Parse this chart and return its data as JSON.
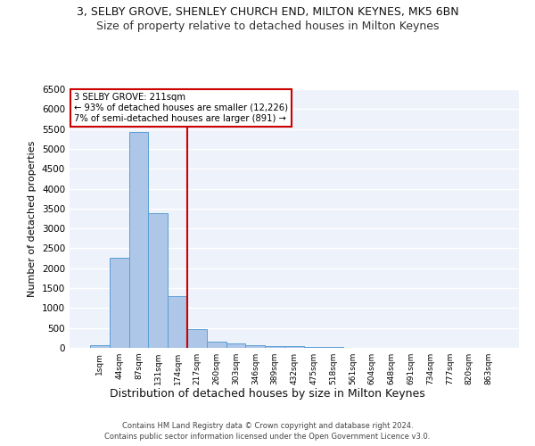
{
  "title1": "3, SELBY GROVE, SHENLEY CHURCH END, MILTON KEYNES, MK5 6BN",
  "title2": "Size of property relative to detached houses in Milton Keynes",
  "xlabel": "Distribution of detached houses by size in Milton Keynes",
  "ylabel": "Number of detached properties",
  "footer1": "Contains HM Land Registry data © Crown copyright and database right 2024.",
  "footer2": "Contains public sector information licensed under the Open Government Licence v3.0.",
  "bar_labels": [
    "1sqm",
    "44sqm",
    "87sqm",
    "131sqm",
    "174sqm",
    "217sqm",
    "260sqm",
    "303sqm",
    "346sqm",
    "389sqm",
    "432sqm",
    "475sqm",
    "518sqm",
    "561sqm",
    "604sqm",
    "648sqm",
    "691sqm",
    "734sqm",
    "777sqm",
    "820sqm",
    "863sqm"
  ],
  "bar_values": [
    75,
    2270,
    5430,
    3380,
    1310,
    480,
    165,
    110,
    75,
    55,
    40,
    30,
    15,
    10,
    8,
    5,
    4,
    3,
    2,
    2,
    1
  ],
  "bar_color": "#aec6e8",
  "bar_edge_color": "#5a9fd4",
  "property_label": "3 SELBY GROVE: 211sqm",
  "annotation_line1": "← 93% of detached houses are smaller (12,226)",
  "annotation_line2": "7% of semi-detached houses are larger (891) →",
  "vline_color": "#cc0000",
  "annotation_box_color": "#cc0000",
  "ylim": [
    0,
    6500
  ],
  "yticks": [
    0,
    500,
    1000,
    1500,
    2000,
    2500,
    3000,
    3500,
    4000,
    4500,
    5000,
    5500,
    6000,
    6500
  ],
  "background_color": "#eef2fb",
  "grid_color": "#ffffff",
  "title1_fontsize": 9,
  "title2_fontsize": 9,
  "ylabel_fontsize": 8,
  "xlabel_fontsize": 9
}
